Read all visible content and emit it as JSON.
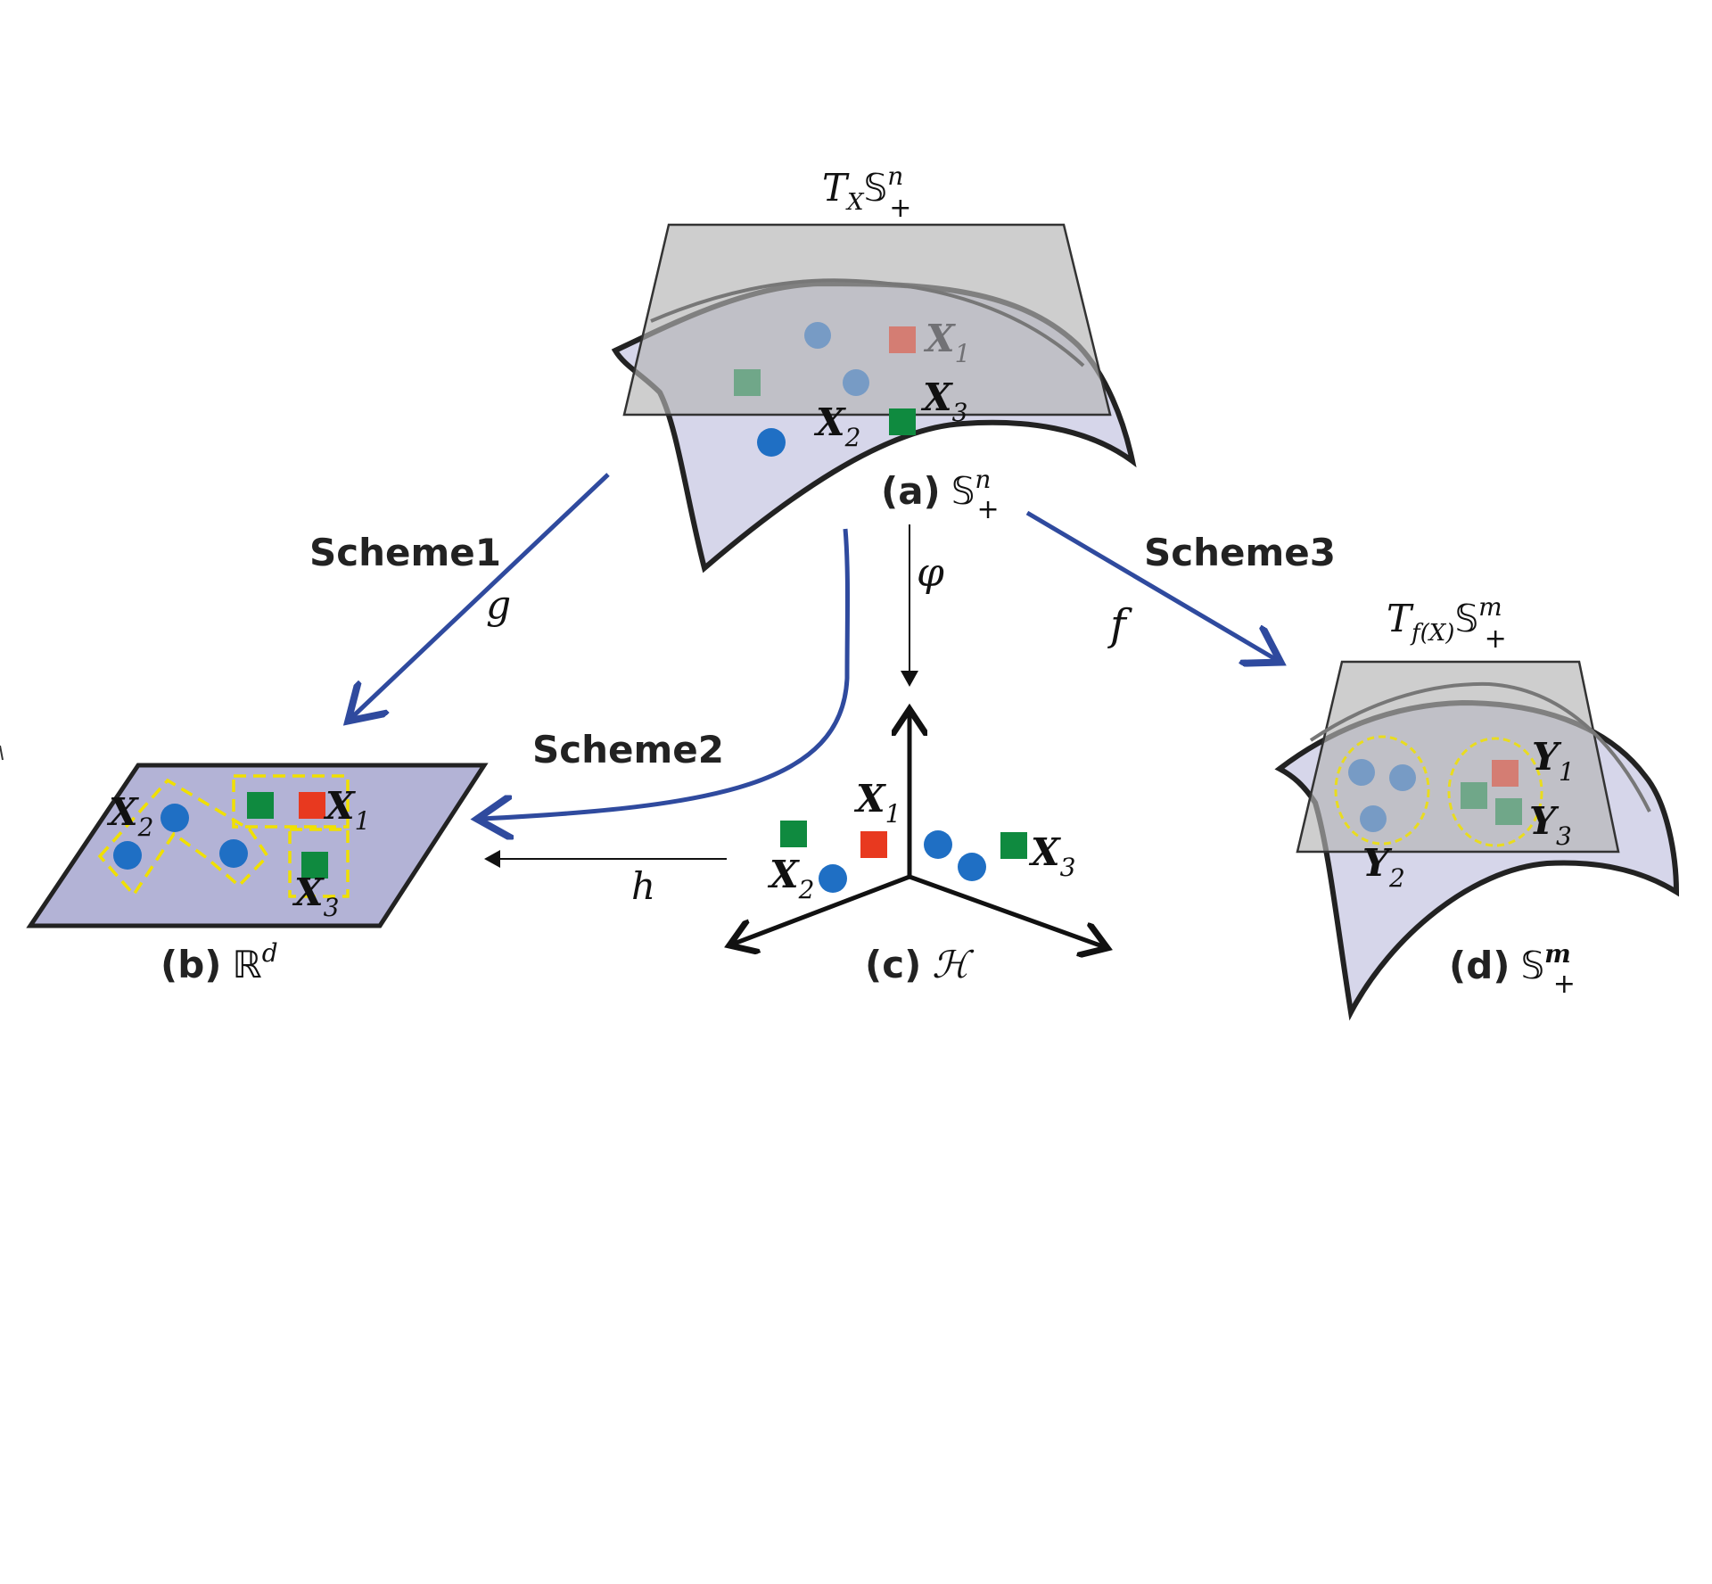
{
  "colors": {
    "scheme_arrow": "#2f4a9e",
    "manifold_fill": "#d6d6ea",
    "tangent_fill": "#b4b4b4",
    "plane_fill": "#b3b3d6",
    "blue_point": "#1f6fc4",
    "green_point": "#0f8a3f",
    "red_point": "#e8391f",
    "dashed_yellow": "#f0e000"
  },
  "labels": {
    "scheme1": "Scheme1",
    "scheme2": "Scheme2",
    "scheme3": "Scheme3",
    "map_g": "g",
    "map_h": "h",
    "map_f": "f",
    "map_phi": "φ"
  },
  "panel_a": {
    "caption_prefix": "(a)",
    "space_symbol": "𝕊",
    "space_sup": "n",
    "space_sub": "+",
    "tangent_T": "T",
    "tangent_T_sub": "X",
    "tangent_space": "𝕊",
    "tangent_sup": "n",
    "tangent_sub": "+",
    "point_labels": [
      {
        "main": "X",
        "sub": "1"
      },
      {
        "main": "X",
        "sub": "2"
      },
      {
        "main": "X",
        "sub": "3"
      }
    ]
  },
  "panel_b": {
    "caption_prefix": "(b)",
    "space_symbol": "ℝ",
    "space_sup": "d",
    "point_labels": [
      {
        "main": "X",
        "sub": "1"
      },
      {
        "main": "X",
        "sub": "2"
      },
      {
        "main": "X",
        "sub": "3"
      }
    ]
  },
  "panel_c": {
    "caption_prefix": "(c)",
    "space_symbol": "ℋ",
    "point_labels": [
      {
        "main": "X",
        "sub": "1"
      },
      {
        "main": "X",
        "sub": "2"
      },
      {
        "main": "X",
        "sub": "3"
      }
    ]
  },
  "panel_d": {
    "caption_prefix": "(d)",
    "space_symbol": "𝕊",
    "space_sup": "m",
    "space_sub": "+",
    "tangent_T": "T",
    "tangent_T_sub": "f(X)",
    "tangent_space": "𝕊",
    "tangent_sup": "m",
    "tangent_sub": "+",
    "point_labels": [
      {
        "main": "Y",
        "sub": "1"
      },
      {
        "main": "Y",
        "sub": "2"
      },
      {
        "main": "Y",
        "sub": "3"
      }
    ]
  }
}
